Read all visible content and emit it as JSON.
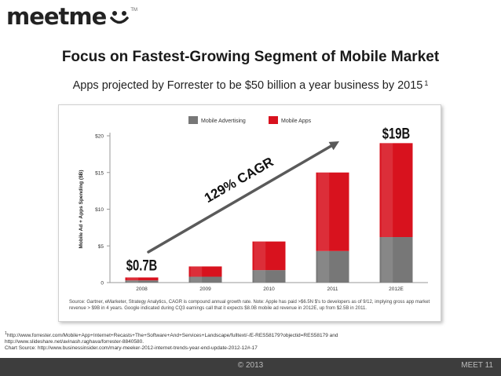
{
  "logo": {
    "text": "meetme",
    "tm": "TM"
  },
  "slide": {
    "title": "Focus on Fastest-Growing Segment of Mobile Market",
    "subtitle": "Apps projected by Forrester to be $50 billion a year business by 2015",
    "subtitle_sup": "1"
  },
  "chart_data": {
    "type": "bar",
    "stacked": true,
    "categories": [
      "2008",
      "2009",
      "2010",
      "2011",
      "2012E"
    ],
    "series": [
      {
        "name": "Mobile Advertising",
        "color": "#777777",
        "values": [
          0.3,
          0.8,
          1.7,
          4.3,
          6.2
        ]
      },
      {
        "name": "Mobile Apps",
        "color": "#d8121e",
        "values": [
          0.4,
          1.4,
          3.9,
          10.7,
          12.8
        ]
      }
    ],
    "ylabel": "Mobile Ad + Apps Spending ($B)",
    "ylim": [
      0,
      20
    ],
    "yticks": [
      0,
      5,
      10,
      15,
      20
    ],
    "ytick_labels": [
      "0",
      "$5",
      "$10",
      "$15",
      "$20"
    ],
    "legend": "top",
    "grid": false,
    "annotations": {
      "start": "$0.7B",
      "end": "$19B",
      "growth": "129% CAGR"
    }
  },
  "source_note": "Source: Gartner, eMarketer, Strategy Analytics, CAGR is compound annual growth rate. Note: Apple has paid >$6.5N $'s to developers as of 9/12, implying gross app market revenue > $9B in 4 years. Google indicated during CQ3 earnings call that it expects $8.0B mobile ad revenue in 2012E, up from $2.5B in 2011.",
  "footnote": {
    "sup": "1",
    "line1": "http://www.forrester.com/Mobile+App+Internet+Recasts+The+Software+And+Services+Landscape/fulltext/-/E-RES58179?objectid=RES58179 and",
    "line2": "http://www.slideshare.net/avinash.raghava/forrester-8840580.",
    "line3": "Chart Source: http://www.businessinsider.com/mary-meeker-2012-internet-trends-year-end-update-2012-12#-17"
  },
  "footer": {
    "copyright": "© 2013",
    "page": "MEET 11"
  }
}
